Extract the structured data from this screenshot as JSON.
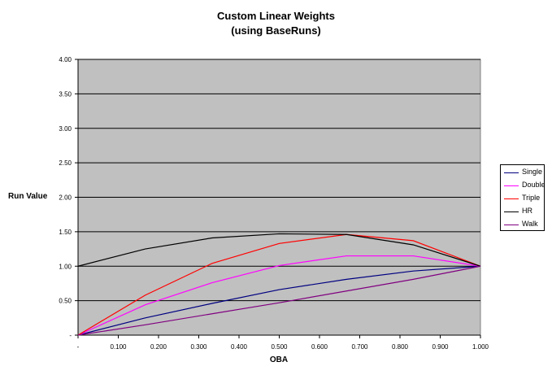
{
  "chart_data": {
    "type": "line",
    "title": "Custom Linear Weights",
    "subtitle": "(using BaseRuns)",
    "xlabel": "OBA",
    "ylabel": "Run Value",
    "xlim": [
      0,
      1
    ],
    "ylim": [
      0,
      4
    ],
    "x_ticks": [
      0,
      0.1,
      0.2,
      0.3,
      0.4,
      0.5,
      0.6,
      0.7,
      0.8,
      0.9,
      1.0
    ],
    "x_tick_labels": [
      "-",
      "0.100",
      "0.200",
      "0.300",
      "0.400",
      "0.500",
      "0.600",
      "0.700",
      "0.800",
      "0.900",
      "1.000"
    ],
    "y_ticks": [
      0,
      0.5,
      1,
      1.5,
      2,
      2.5,
      3,
      3.5,
      4
    ],
    "y_tick_labels": [
      "-",
      "0.50",
      "1.00",
      "1.50",
      "2.00",
      "2.50",
      "3.00",
      "3.50",
      "4.00"
    ],
    "grid": true,
    "plot_background": "#c0c0c0",
    "legend_position": "right",
    "x": [
      0,
      0.167,
      0.333,
      0.5,
      0.667,
      0.833,
      1.0
    ],
    "series": [
      {
        "name": "Single",
        "color": "#000080",
        "values": [
          0,
          0.25,
          0.46,
          0.66,
          0.81,
          0.93,
          1.0
        ]
      },
      {
        "name": "Double",
        "color": "#ff00ff",
        "values": [
          0,
          0.44,
          0.76,
          1.01,
          1.15,
          1.15,
          1.0
        ]
      },
      {
        "name": "Triple",
        "color": "#ff0000",
        "values": [
          0,
          0.58,
          1.04,
          1.33,
          1.46,
          1.37,
          1.0
        ]
      },
      {
        "name": "HR",
        "color": "#000000",
        "values": [
          1.0,
          1.25,
          1.41,
          1.47,
          1.46,
          1.31,
          1.0
        ]
      },
      {
        "name": "Walk",
        "color": "#800080",
        "values": [
          0,
          0.15,
          0.31,
          0.47,
          0.64,
          0.81,
          1.0
        ]
      }
    ]
  }
}
